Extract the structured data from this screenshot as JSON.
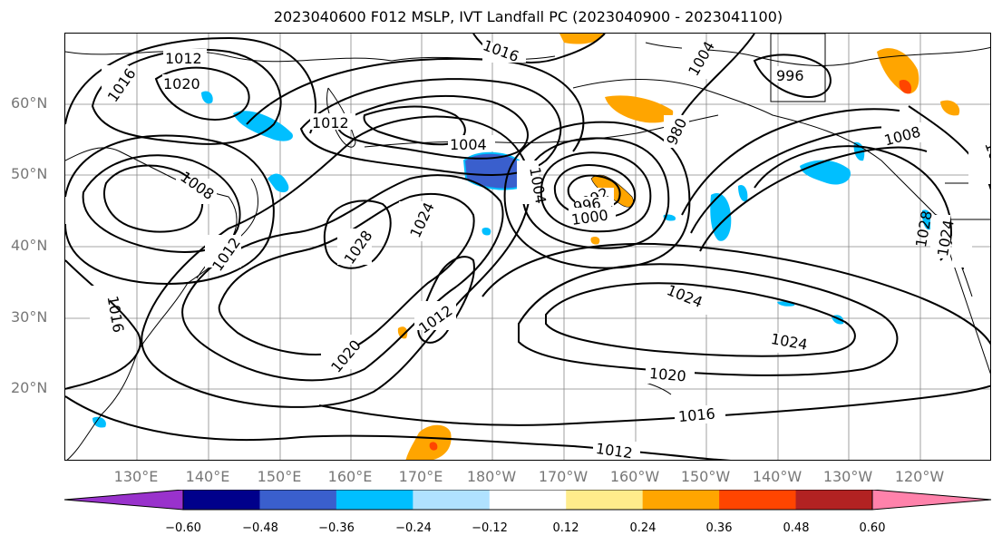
{
  "title": "2023040600 F012 MSLP, IVT Landfall PC (2023040900 - 2023041100)",
  "lat_labels": [
    "60°N",
    "50°N",
    "40°N",
    "30°N",
    "20°N"
  ],
  "lon_labels": [
    "130°E",
    "140°E",
    "150°E",
    "160°E",
    "170°E",
    "180°W",
    "170°W",
    "160°W",
    "150°W",
    "140°W",
    "130°W",
    "120°W"
  ],
  "colorbar": {
    "colors": [
      "#9932CC",
      "#00008B",
      "#3A5FCD",
      "#00BFFF",
      "#B0E2FF",
      "#FFFFFF",
      "#FFEC8B",
      "#FFA500",
      "#FF4500",
      "#B22222",
      "#FF82AB"
    ],
    "ticks": [
      "−0.60",
      "−0.48",
      "−0.36",
      "−0.24",
      "−0.12",
      "0.12",
      "0.24",
      "0.36",
      "0.48",
      "0.60"
    ]
  },
  "contour_labels": [
    "1012",
    "1016",
    "1020",
    "1016",
    "1008",
    "1012",
    "1016",
    "1012",
    "1004",
    "1016",
    "1016",
    "1004",
    "996",
    "1008",
    "1020",
    "1004",
    "1028",
    "1024",
    "992",
    "996",
    "1000",
    "1012",
    "1024",
    "1020",
    "1024",
    "1020",
    "1016",
    "1012",
    "1028",
    "1024",
    "980"
  ]
}
